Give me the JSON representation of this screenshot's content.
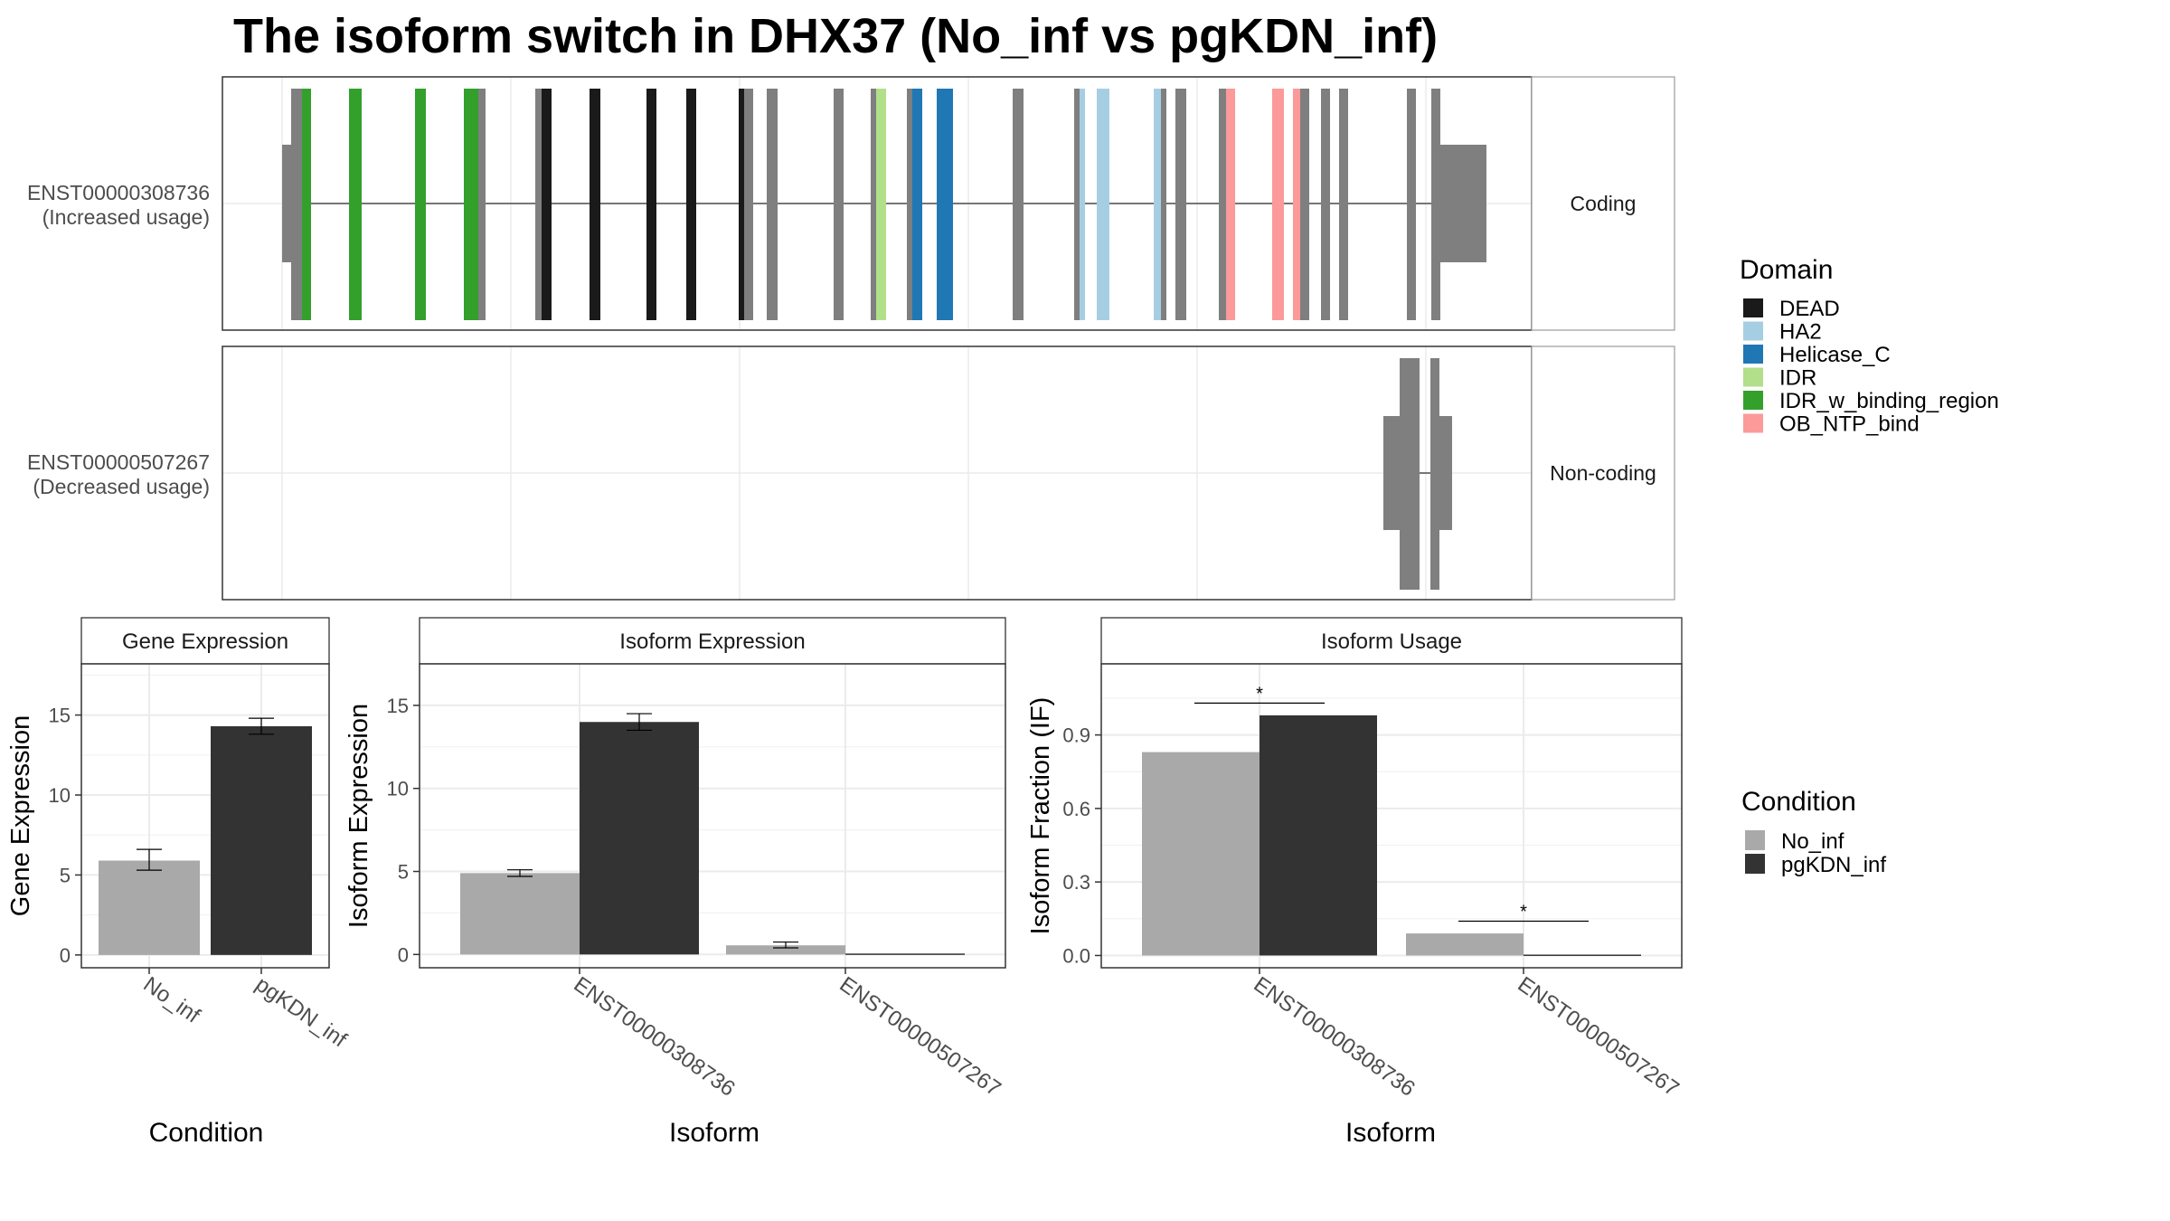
{
  "title": "The isoform switch in DHX37 (No_inf vs pgKDN_inf)",
  "colors": {
    "grey_feature": "#7f7f7f",
    "panel_border": "#333333",
    "strip_fill": "#ffffff",
    "grid": "#ebebeb",
    "bar_no_inf": "#a9a9a9",
    "bar_pgkdn": "#333333"
  },
  "transcripts": [
    {
      "label_id": "ENST00000308736",
      "label_usage": "(Increased usage)",
      "type": "Coding"
    },
    {
      "label_id": "ENST00000507267",
      "label_usage": "(Decreased usage)",
      "type": "Non-coding"
    }
  ],
  "domain_legend": {
    "title": "Domain",
    "items": [
      {
        "name": "DEAD",
        "color": "#1a1a1a"
      },
      {
        "name": "HA2",
        "color": "#a6cee3"
      },
      {
        "name": "Helicase_C",
        "color": "#1f78b4"
      },
      {
        "name": "IDR",
        "color": "#b2df8a"
      },
      {
        "name": "IDR_w_binding_region",
        "color": "#33a02c"
      },
      {
        "name": "OB_NTP_bind",
        "color": "#fb9a99"
      }
    ]
  },
  "condition_legend": {
    "title": "Condition",
    "items": [
      {
        "name": "No_inf",
        "color": "#a9a9a9"
      },
      {
        "name": "pgKDN_inf",
        "color": "#333333"
      }
    ]
  },
  "chart_data": [
    {
      "type": "bar",
      "strip": "Gene Expression",
      "xlabel": "Condition",
      "ylabel": "Gene Expression",
      "categories": [
        "No_inf",
        "pgKDN_inf"
      ],
      "values": [
        5.9,
        14.3
      ],
      "errors": [
        [
          5.3,
          6.6
        ],
        [
          13.8,
          14.8
        ]
      ],
      "ylim": [
        -0.8,
        18.2
      ],
      "yticks": [
        0,
        5,
        10,
        15
      ]
    },
    {
      "type": "bar",
      "strip": "Isoform Expression",
      "xlabel": "Isoform",
      "ylabel": "Isoform Expression",
      "categories": [
        "ENST00000308736",
        "ENST00000507267"
      ],
      "series": [
        {
          "name": "No_inf",
          "values": [
            4.9,
            0.55
          ],
          "errors": [
            [
              4.7,
              5.1
            ],
            [
              0.4,
              0.75
            ]
          ]
        },
        {
          "name": "pgKDN_inf",
          "values": [
            14.0,
            0.0
          ],
          "errors": [
            [
              13.5,
              14.5
            ],
            [
              0,
              0
            ]
          ]
        }
      ],
      "ylim": [
        -0.8,
        17.5
      ],
      "yticks": [
        0,
        5,
        10,
        15
      ]
    },
    {
      "type": "bar",
      "strip": "Isoform Usage",
      "xlabel": "Isoform",
      "ylabel": "Isoform Fraction (IF)",
      "categories": [
        "ENST00000308736",
        "ENST00000507267"
      ],
      "series": [
        {
          "name": "No_inf",
          "values": [
            0.83,
            0.09
          ]
        },
        {
          "name": "pgKDN_inf",
          "values": [
            0.98,
            0.0
          ]
        }
      ],
      "significance": [
        {
          "category": "ENST00000308736",
          "label": "*",
          "y": 1.03
        },
        {
          "category": "ENST00000507267",
          "label": "*",
          "y": 0.14
        }
      ],
      "ylim": [
        -0.05,
        1.19
      ],
      "yticks": [
        "0.0",
        "0.3",
        "0.6",
        "0.9"
      ]
    }
  ]
}
